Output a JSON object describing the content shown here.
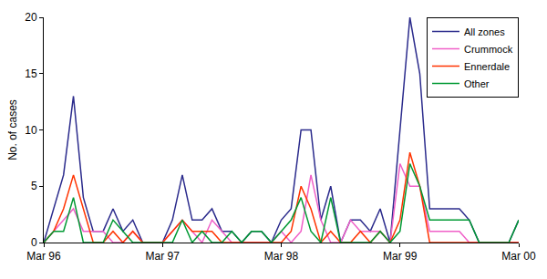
{
  "chart_data": {
    "type": "line",
    "y_label": "No. of cases",
    "categories": [
      "Mar 96",
      null,
      null,
      null,
      null,
      null,
      null,
      null,
      null,
      null,
      null,
      null,
      "Mar 97",
      null,
      null,
      null,
      null,
      null,
      null,
      null,
      null,
      null,
      null,
      null,
      "Mar 98",
      null,
      null,
      null,
      null,
      null,
      null,
      null,
      null,
      null,
      null,
      null,
      "Mar 99",
      null,
      null,
      null,
      null,
      null,
      null,
      null,
      null,
      null,
      null,
      null,
      "Mar 00"
    ],
    "series": [
      {
        "name": "All zones",
        "color": "#2b2b8c",
        "values": [
          0,
          3,
          6,
          13,
          4,
          1,
          1,
          3,
          1,
          2,
          0,
          0,
          0,
          2,
          6,
          2,
          2,
          3,
          1,
          1,
          0,
          1,
          1,
          0,
          2,
          3,
          10,
          10,
          2,
          5,
          0,
          2,
          2,
          1,
          3,
          0,
          10,
          20,
          15,
          3,
          3,
          3,
          3,
          2,
          0,
          0,
          0,
          0,
          2
        ]
      },
      {
        "name": "Crummock",
        "color": "#f060c8",
        "values": [
          0,
          1,
          2,
          3,
          1,
          1,
          1,
          0,
          0,
          1,
          0,
          0,
          0,
          1,
          2,
          1,
          0,
          2,
          1,
          0,
          0,
          0,
          0,
          0,
          1,
          0,
          1,
          6,
          2,
          0,
          0,
          2,
          1,
          1,
          1,
          0,
          7,
          5,
          5,
          1,
          1,
          1,
          1,
          0,
          0,
          0,
          0,
          0,
          0
        ]
      },
      {
        "name": "Ennerdale",
        "color": "#ff3300",
        "values": [
          0,
          1,
          3,
          6,
          3,
          0,
          0,
          1,
          0,
          1,
          0,
          0,
          0,
          1,
          2,
          1,
          1,
          1,
          0,
          0,
          0,
          0,
          0,
          0,
          0,
          1,
          5,
          3,
          0,
          1,
          0,
          0,
          1,
          0,
          1,
          0,
          2,
          8,
          5,
          0,
          0,
          0,
          0,
          0,
          0,
          0,
          0,
          0,
          0
        ]
      },
      {
        "name": "Other",
        "color": "#009933",
        "values": [
          0,
          1,
          1,
          4,
          0,
          0,
          0,
          2,
          1,
          0,
          0,
          0,
          0,
          0,
          2,
          0,
          1,
          0,
          0,
          1,
          0,
          1,
          1,
          0,
          1,
          2,
          4,
          1,
          0,
          4,
          0,
          0,
          0,
          0,
          1,
          0,
          1,
          7,
          5,
          2,
          2,
          2,
          2,
          2,
          0,
          0,
          0,
          0,
          2
        ]
      }
    ],
    "ylim": [
      0,
      20
    ],
    "yticks": [
      0,
      5,
      10,
      15,
      20
    ],
    "grid": false,
    "legend": "top-right"
  }
}
